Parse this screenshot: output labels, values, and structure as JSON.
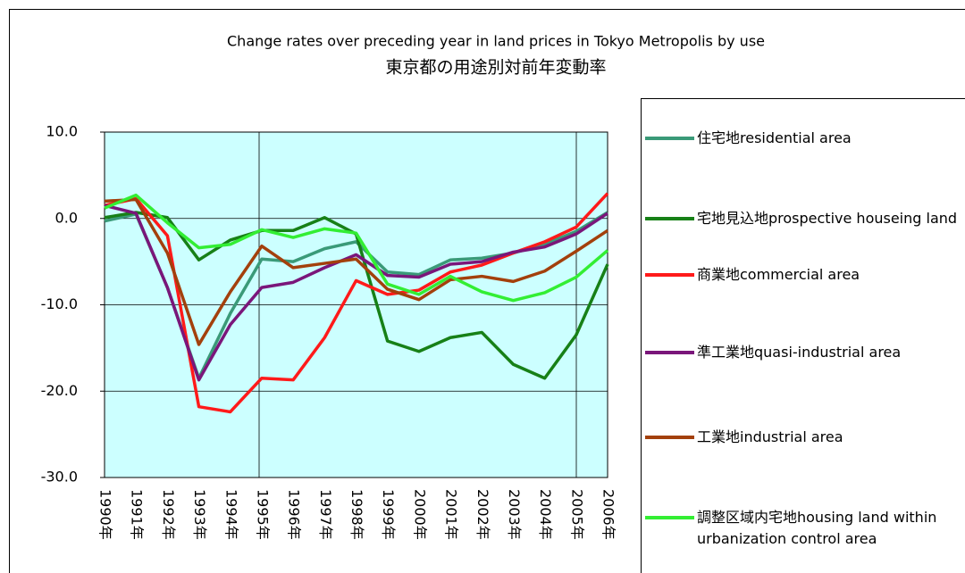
{
  "chart_data": {
    "type": "line",
    "title": "Change rates over preceding year in land prices in Tokyo Metropolis by use",
    "subtitle": "東京都の用途別対前年変動率",
    "categories": [
      "1990年",
      "1991年",
      "1992年",
      "1993年",
      "1994年",
      "1995年",
      "1996年",
      "1997年",
      "1998年",
      "1999年",
      "2000年",
      "2001年",
      "2002年",
      "2003年",
      "2004年",
      "2005年",
      "2006年"
    ],
    "series": [
      {
        "name": "住宅地residential area",
        "color": "#3a9a78",
        "values": [
          -0.3,
          0.5,
          -8,
          -18.5,
          -11,
          -4.7,
          -5,
          -3.5,
          -2.7,
          -6.2,
          -6.5,
          -4.8,
          -4.6,
          -4,
          -3,
          -1.5,
          0.7
        ]
      },
      {
        "name": "宅地見込地prospective houseing land",
        "color": "#178017",
        "values": [
          0.1,
          0.7,
          0.1,
          -4.8,
          -2.5,
          -1.4,
          -1.4,
          0.1,
          -1.8,
          -14.2,
          -15.4,
          -13.8,
          -13.2,
          -16.9,
          -18.5,
          -13.5,
          -5.3
        ]
      },
      {
        "name": "商業地commercial area",
        "color": "#ff1a1a",
        "values": [
          1.5,
          2.3,
          -2,
          -21.8,
          -22.4,
          -18.5,
          -18.7,
          -13.8,
          -7.2,
          -8.8,
          -8.3,
          -6.2,
          -5.4,
          -4,
          -2.7,
          -1,
          2.9
        ]
      },
      {
        "name": "準工業地quasi-industrial area",
        "color": "#7a167a",
        "values": [
          1.5,
          0.6,
          -8,
          -18.7,
          -12.3,
          -8,
          -7.4,
          -5.7,
          -4.2,
          -6.6,
          -6.8,
          -5.3,
          -5,
          -3.9,
          -3.3,
          -1.8,
          0.6
        ]
      },
      {
        "name": "工業地industrial area",
        "color": "#a3400c",
        "values": [
          2,
          2.2,
          -4,
          -14.6,
          -8.5,
          -3.2,
          -5.7,
          -5.2,
          -4.7,
          -8.2,
          -9.4,
          -7.1,
          -6.7,
          -7.3,
          -6.1,
          -3.8,
          -1.4
        ]
      },
      {
        "name": "調整区域内宅地housing land within urbanization control area",
        "color": "#33ee33",
        "values": [
          1.2,
          2.7,
          -0.5,
          -3.4,
          -3,
          -1.3,
          -2.2,
          -1.2,
          -1.7,
          -7.6,
          -8.8,
          -6.7,
          -8.5,
          -9.5,
          -8.6,
          -6.8,
          -3.7
        ]
      }
    ],
    "ylim": [
      -30,
      10
    ],
    "yticks": [
      {
        "value": -30,
        "label": "-30.0"
      },
      {
        "value": -20,
        "label": "-20.0"
      },
      {
        "value": -10,
        "label": "-10.0"
      },
      {
        "value": 0,
        "label": "0.0"
      },
      {
        "value": 10,
        "label": "10.0"
      }
    ],
    "grid": true,
    "legend": "right"
  }
}
